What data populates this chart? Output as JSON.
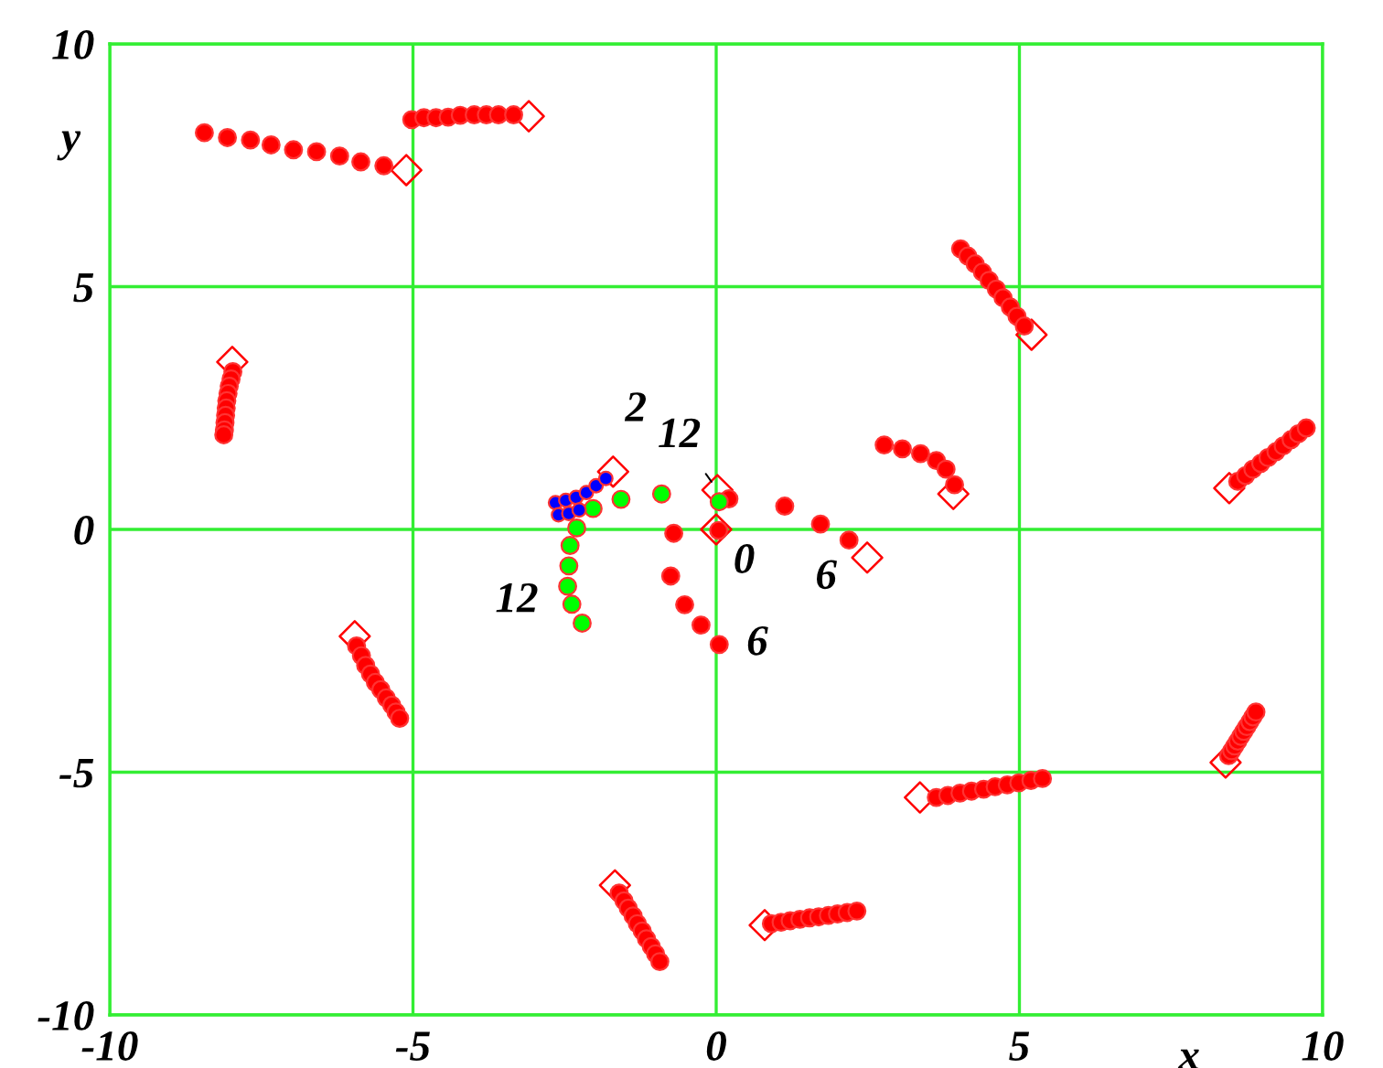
{
  "chart_data": {
    "type": "scatter",
    "xlabel": "x",
    "ylabel": "y",
    "xlim": [
      -10,
      10
    ],
    "ylim": [
      -10,
      10
    ],
    "xticks": [
      -10,
      -5,
      0,
      5,
      10
    ],
    "yticks": [
      -10,
      -5,
      0,
      5,
      10
    ],
    "grid": true,
    "legend": false,
    "series": [
      {
        "color": "#ff0000",
        "marker": "circle",
        "x": [
          -8.44,
          -8.06,
          -7.68,
          -7.34,
          -6.97,
          -6.59,
          -6.21,
          -5.86,
          -5.48,
          -5.02,
          -4.82,
          -4.62,
          -4.42,
          -4.22,
          -3.99,
          -3.79,
          -3.59,
          -3.34,
          -7.97,
          -8.0,
          -8.03,
          -8.05,
          -8.07,
          -8.08,
          -8.09,
          -8.1,
          -8.11,
          -8.12,
          -5.93,
          -5.85,
          -5.78,
          -5.7,
          -5.62,
          -5.53,
          -5.44,
          -5.35,
          -5.28,
          -5.22,
          -1.6,
          -1.52,
          -1.45,
          -1.37,
          -1.3,
          -1.22,
          -1.15,
          -1.07,
          -1.0,
          -0.93,
          0.91,
          1.07,
          1.22,
          1.38,
          1.54,
          1.69,
          1.85,
          2.0,
          2.16,
          2.32,
          3.63,
          3.82,
          4.02,
          4.21,
          4.41,
          4.6,
          4.8,
          4.99,
          5.19,
          5.38,
          8.45,
          8.5,
          8.55,
          8.6,
          8.65,
          8.7,
          8.75,
          8.8,
          8.85,
          8.9,
          8.6,
          8.73,
          8.85,
          8.98,
          9.1,
          9.23,
          9.35,
          9.48,
          9.6,
          9.73,
          4.03,
          4.15,
          4.27,
          4.39,
          4.5,
          4.62,
          4.73,
          4.85,
          4.96,
          5.08,
          2.77,
          3.07,
          3.37,
          3.63,
          3.79,
          3.93,
          0.21,
          1.13,
          1.72,
          2.19,
          0.04,
          -0.7,
          -0.75,
          -0.52,
          -0.25,
          0.05
        ],
        "values": [
          8.17,
          8.07,
          8.02,
          7.92,
          7.82,
          7.78,
          7.69,
          7.57,
          7.49,
          8.44,
          8.48,
          8.48,
          8.49,
          8.53,
          8.54,
          8.54,
          8.54,
          8.54,
          3.25,
          3.1,
          2.95,
          2.8,
          2.65,
          2.5,
          2.35,
          2.2,
          2.05,
          1.95,
          -2.4,
          -2.6,
          -2.8,
          -2.98,
          -3.15,
          -3.3,
          -3.47,
          -3.62,
          -3.76,
          -3.89,
          -7.49,
          -7.65,
          -7.8,
          -7.96,
          -8.12,
          -8.27,
          -8.43,
          -8.59,
          -8.74,
          -8.9,
          -8.12,
          -8.09,
          -8.06,
          -8.03,
          -8.0,
          -7.98,
          -7.95,
          -7.92,
          -7.89,
          -7.86,
          -5.52,
          -5.48,
          -5.43,
          -5.39,
          -5.35,
          -5.3,
          -5.26,
          -5.22,
          -5.17,
          -5.13,
          -4.66,
          -4.56,
          -4.46,
          -4.36,
          -4.26,
          -4.16,
          -4.06,
          -3.96,
          -3.86,
          -3.76,
          0.99,
          1.11,
          1.24,
          1.36,
          1.48,
          1.6,
          1.72,
          1.85,
          1.97,
          2.09,
          5.78,
          5.63,
          5.47,
          5.3,
          5.13,
          4.95,
          4.77,
          4.58,
          4.39,
          4.19,
          1.74,
          1.66,
          1.56,
          1.42,
          1.24,
          0.92,
          0.63,
          0.48,
          0.11,
          -0.22,
          -0.02,
          -0.08,
          -0.96,
          -1.55,
          -1.97,
          -2.37
        ]
      },
      {
        "color": "#ff0000",
        "marker": "diamond",
        "x": [
          -3.09,
          -5.11,
          -7.98,
          -5.96,
          -1.67,
          0.8,
          3.36,
          8.4,
          8.46,
          3.91,
          5.2,
          2.49,
          0.02,
          0.0,
          -1.7
        ],
        "values": [
          8.51,
          7.4,
          3.45,
          -2.2,
          -7.33,
          -8.15,
          -5.52,
          -4.8,
          0.85,
          0.73,
          4.01,
          -0.58,
          0.81,
          0.0,
          1.19
        ]
      },
      {
        "color": "#0000ff",
        "marker": "circle",
        "x": [
          -2.65,
          -2.48,
          -2.31,
          -2.14,
          -1.98,
          -1.82,
          -2.6,
          -2.43,
          -2.26
        ],
        "values": [
          0.55,
          0.6,
          0.66,
          0.76,
          0.9,
          1.05,
          0.3,
          0.33,
          0.4
        ]
      },
      {
        "color": "#00ff00",
        "marker": "circle",
        "x": [
          0.05,
          -0.9,
          -1.57,
          -2.03,
          -2.3,
          -2.41,
          -2.43,
          -2.45,
          -2.38,
          -2.21
        ],
        "values": [
          0.57,
          0.73,
          0.62,
          0.43,
          0.03,
          -0.33,
          -0.75,
          -1.17,
          -1.54,
          -1.93
        ]
      }
    ],
    "annotations": [
      {
        "text": "2",
        "x": -1.7,
        "y": 1.19
      },
      {
        "text": "12",
        "x": 0.02,
        "y": 0.81
      },
      {
        "text": "0",
        "x": 0.0,
        "y": 0.0
      },
      {
        "text": "6",
        "x": 2.19,
        "y": -0.22
      },
      {
        "text": "12",
        "x": -2.45,
        "y": -1.17
      },
      {
        "text": "6",
        "x": 0.05,
        "y": -2.37
      }
    ]
  }
}
